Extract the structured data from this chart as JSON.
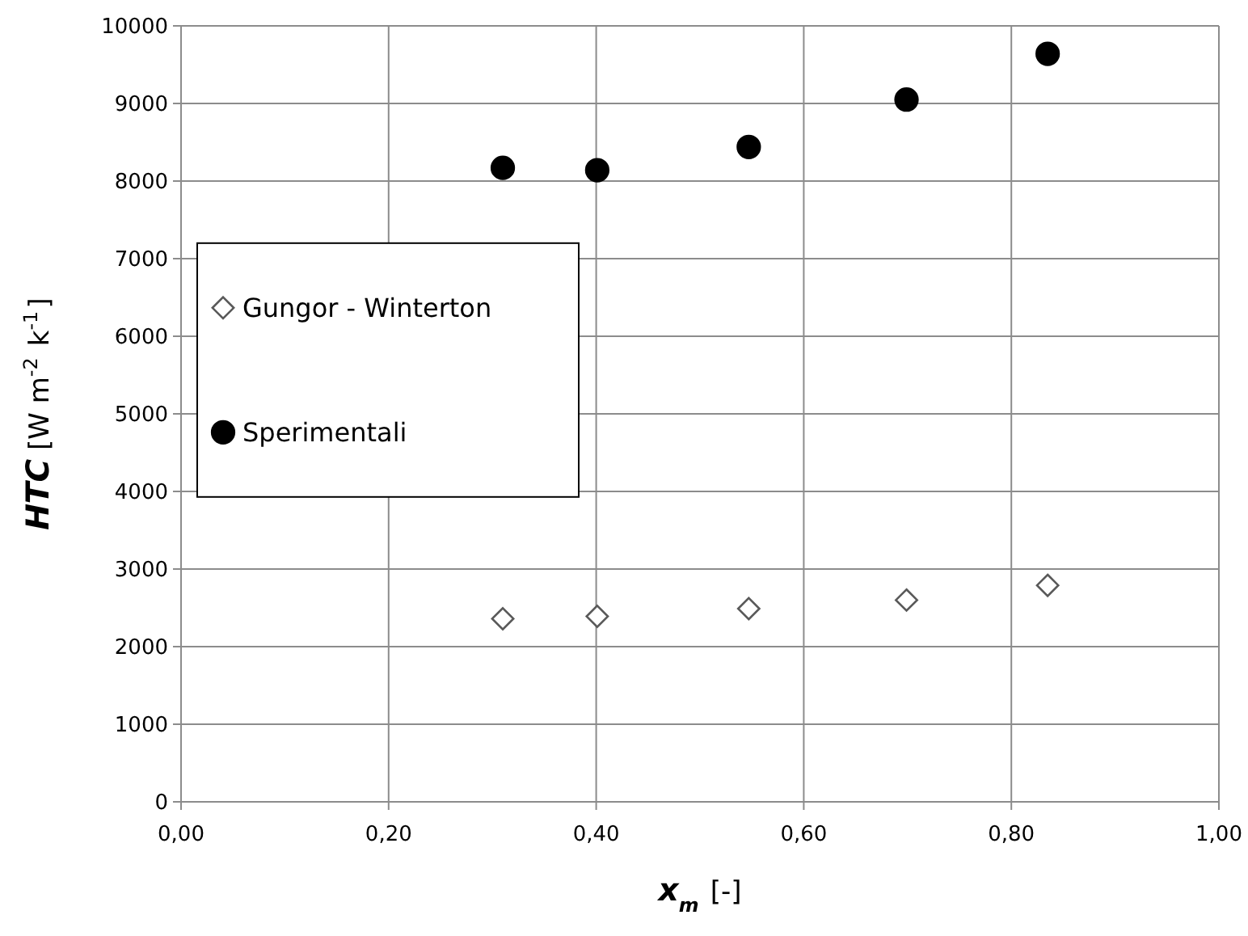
{
  "chart_data": {
    "type": "scatter",
    "xlabel": "x$_{m}$ [-]",
    "ylabel": "HTC [W m$^{-2}$ k$^{-1}$]",
    "xlim": [
      0,
      1
    ],
    "ylim": [
      0,
      10000
    ],
    "xticks": [
      {
        "value": 0,
        "label": "0,00"
      },
      {
        "value": 0.2,
        "label": "0,20"
      },
      {
        "value": 0.4,
        "label": "0,40"
      },
      {
        "value": 0.6,
        "label": "0,60"
      },
      {
        "value": 0.8,
        "label": "0,80"
      },
      {
        "value": 1,
        "label": "1,00"
      }
    ],
    "yticks": [
      0,
      1000,
      2000,
      3000,
      4000,
      5000,
      6000,
      7000,
      8000,
      9000,
      10000
    ],
    "grid": true,
    "legend": "left",
    "x": [
      0.31,
      0.401,
      0.547,
      0.699,
      0.835
    ],
    "series": [
      {
        "name": "Gungor - Winterton",
        "color": "#595959",
        "marker": "diamond",
        "values": [
          2360,
          2390,
          2490,
          2600,
          2790
        ]
      },
      {
        "name": "Sperimentali",
        "color": "#000000",
        "marker": "circle",
        "values": [
          8170,
          8140,
          8440,
          9050,
          9640
        ]
      }
    ]
  }
}
